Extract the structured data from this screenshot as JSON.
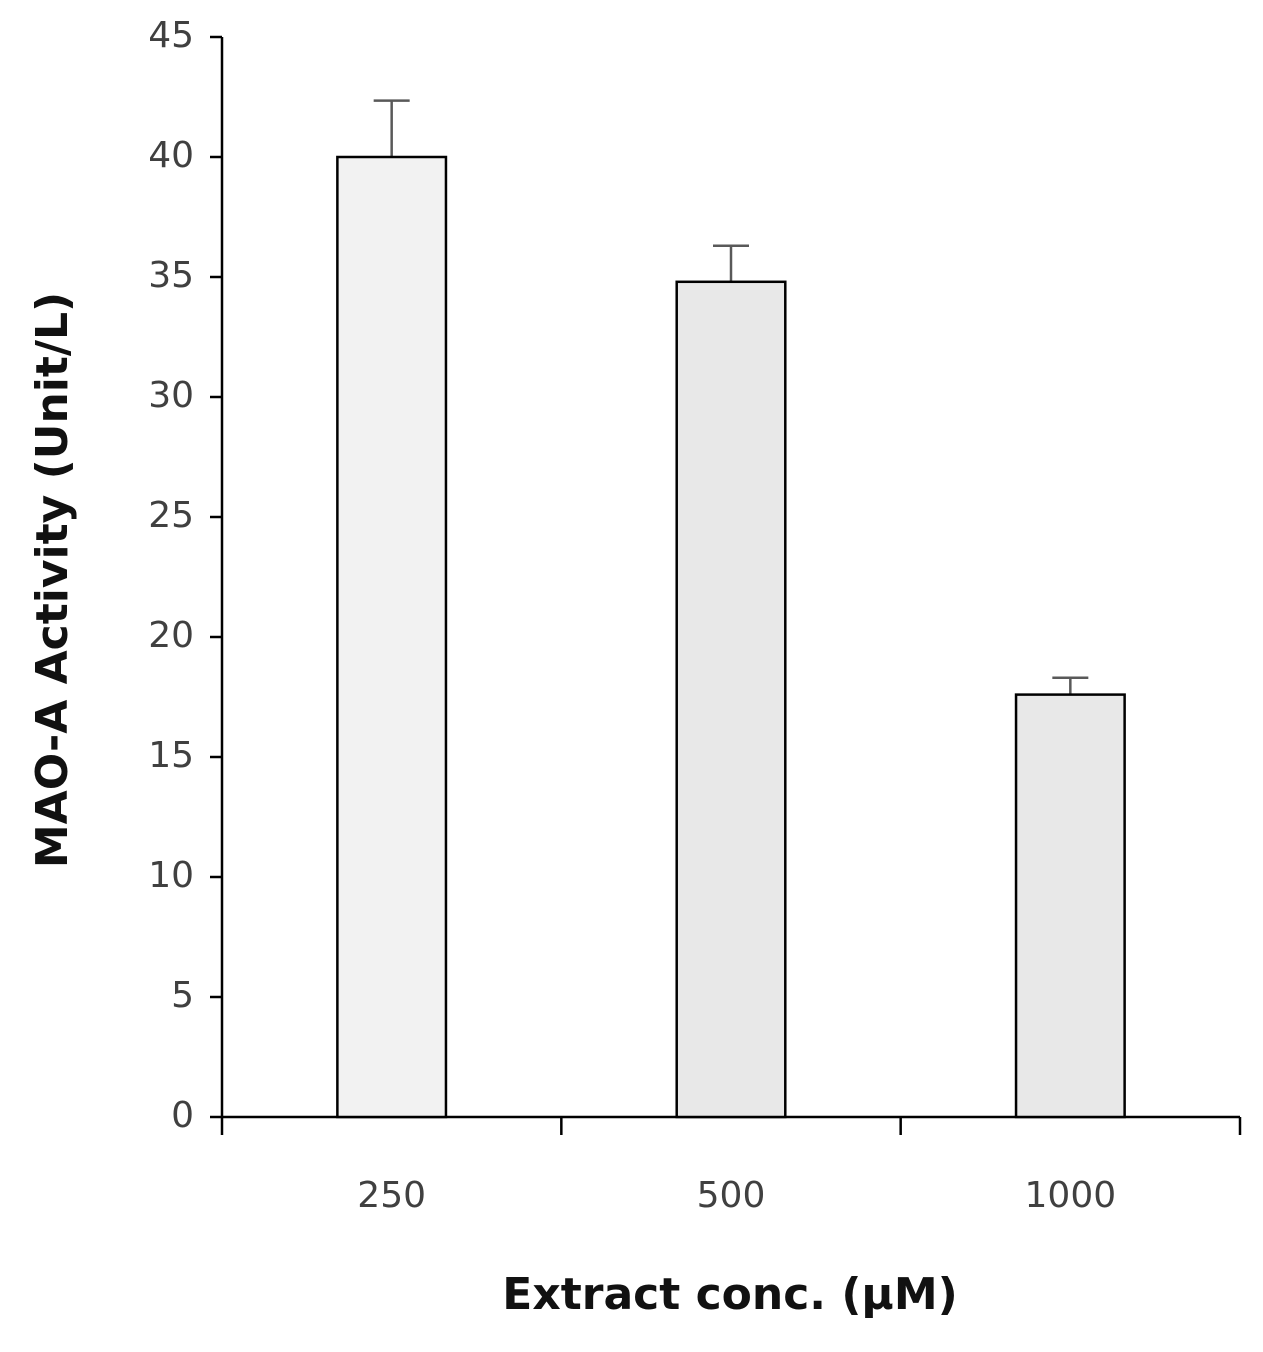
{
  "chart_data": {
    "type": "bar",
    "x_label": "Extract conc. (μM)",
    "y_label": "MAO-A Activity (Unit/L)",
    "categories": [
      "250",
      "500",
      "1000"
    ],
    "values": [
      40,
      34.8,
      17.6
    ],
    "errors": [
      2.35,
      1.5,
      0.7
    ],
    "colors": [
      "#f2f2f2",
      "#e8e8e8",
      "#e8e8e8"
    ],
    "ylim": [
      0,
      45
    ],
    "yticks": [
      0,
      5,
      10,
      15,
      20,
      25,
      30,
      35,
      40,
      45
    ],
    "grid": false
  }
}
